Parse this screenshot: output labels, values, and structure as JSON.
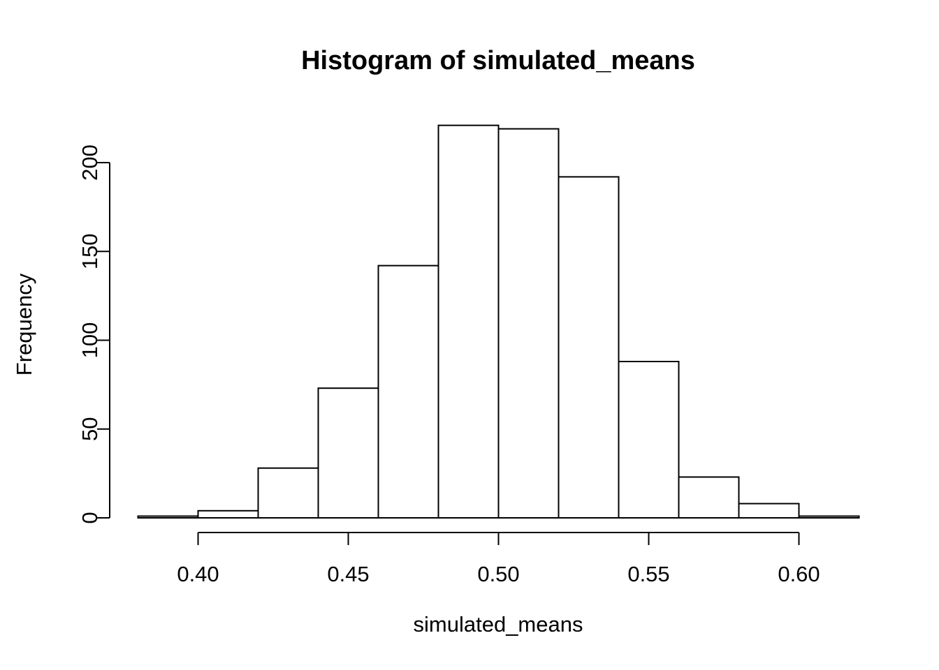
{
  "chart_data": {
    "type": "bar",
    "subtype": "histogram",
    "title": "Histogram of simulated_means",
    "xlabel": "simulated_means",
    "ylabel": "Frequency",
    "bins": {
      "start": 0.38,
      "width": 0.02,
      "count": 12
    },
    "bin_edges": [
      0.38,
      0.4,
      0.42,
      0.44,
      0.46,
      0.48,
      0.5,
      0.52,
      0.54,
      0.56,
      0.58,
      0.6,
      0.62
    ],
    "counts": [
      1,
      4,
      28,
      73,
      142,
      221,
      219,
      192,
      88,
      23,
      8,
      1
    ],
    "xlim": [
      0.38,
      0.62
    ],
    "ylim": [
      0,
      221
    ],
    "x_ticks": {
      "values": [
        0.4,
        0.45,
        0.5,
        0.55,
        0.6
      ],
      "labels": [
        "0.40",
        "0.45",
        "0.50",
        "0.55",
        "0.60"
      ]
    },
    "y_ticks": {
      "values": [
        0,
        50,
        100,
        150,
        200
      ],
      "labels": [
        "0",
        "50",
        "100",
        "150",
        "200"
      ]
    },
    "grid": false,
    "legend": false,
    "style": {
      "bar_fill": "#ffffff",
      "stroke_color": "#000000",
      "background": "#ffffff"
    }
  }
}
